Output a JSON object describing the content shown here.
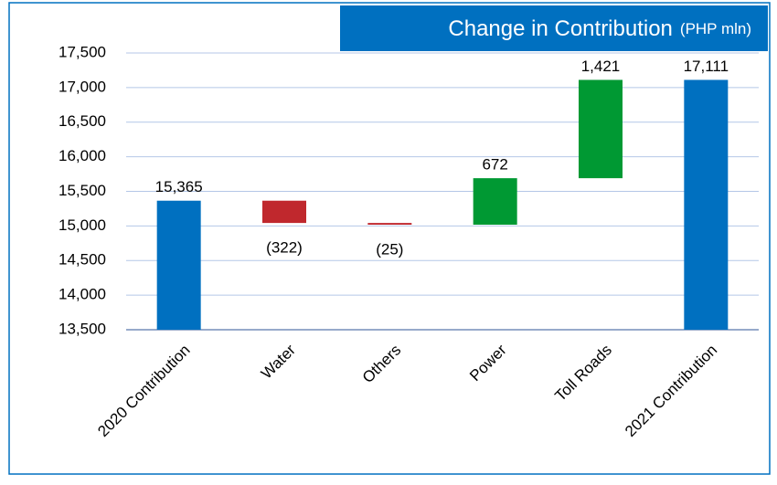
{
  "chart_data": {
    "type": "waterfall",
    "title": "Change in Contribution",
    "unit": "(PHP mln)",
    "categories": [
      "2020 Contribution",
      "Water",
      "Others",
      "Power",
      "Toll Roads",
      "2021 Contribution"
    ],
    "values": [
      15365,
      -322,
      -25,
      672,
      1421,
      17111
    ],
    "value_labels": [
      "15,365",
      "(322)",
      "(25)",
      "672",
      "1,421",
      "17,111"
    ],
    "is_total": [
      true,
      false,
      false,
      false,
      false,
      true
    ],
    "colors": {
      "total": "#0070c0",
      "increase": "#009933",
      "decrease": "#c0282d"
    },
    "ylim": [
      13500,
      17500
    ],
    "yticks": [
      {
        "value": 13500,
        "label": "13,500"
      },
      {
        "value": 14000,
        "label": "14,000"
      },
      {
        "value": 14500,
        "label": "14,500"
      },
      {
        "value": 15000,
        "label": "15,000"
      },
      {
        "value": 15500,
        "label": "15,500"
      },
      {
        "value": 16000,
        "label": "16,000"
      },
      {
        "value": 16500,
        "label": "16,500"
      },
      {
        "value": 17000,
        "label": "17,000"
      },
      {
        "value": 17500,
        "label": "17,500"
      }
    ],
    "grid": true
  }
}
